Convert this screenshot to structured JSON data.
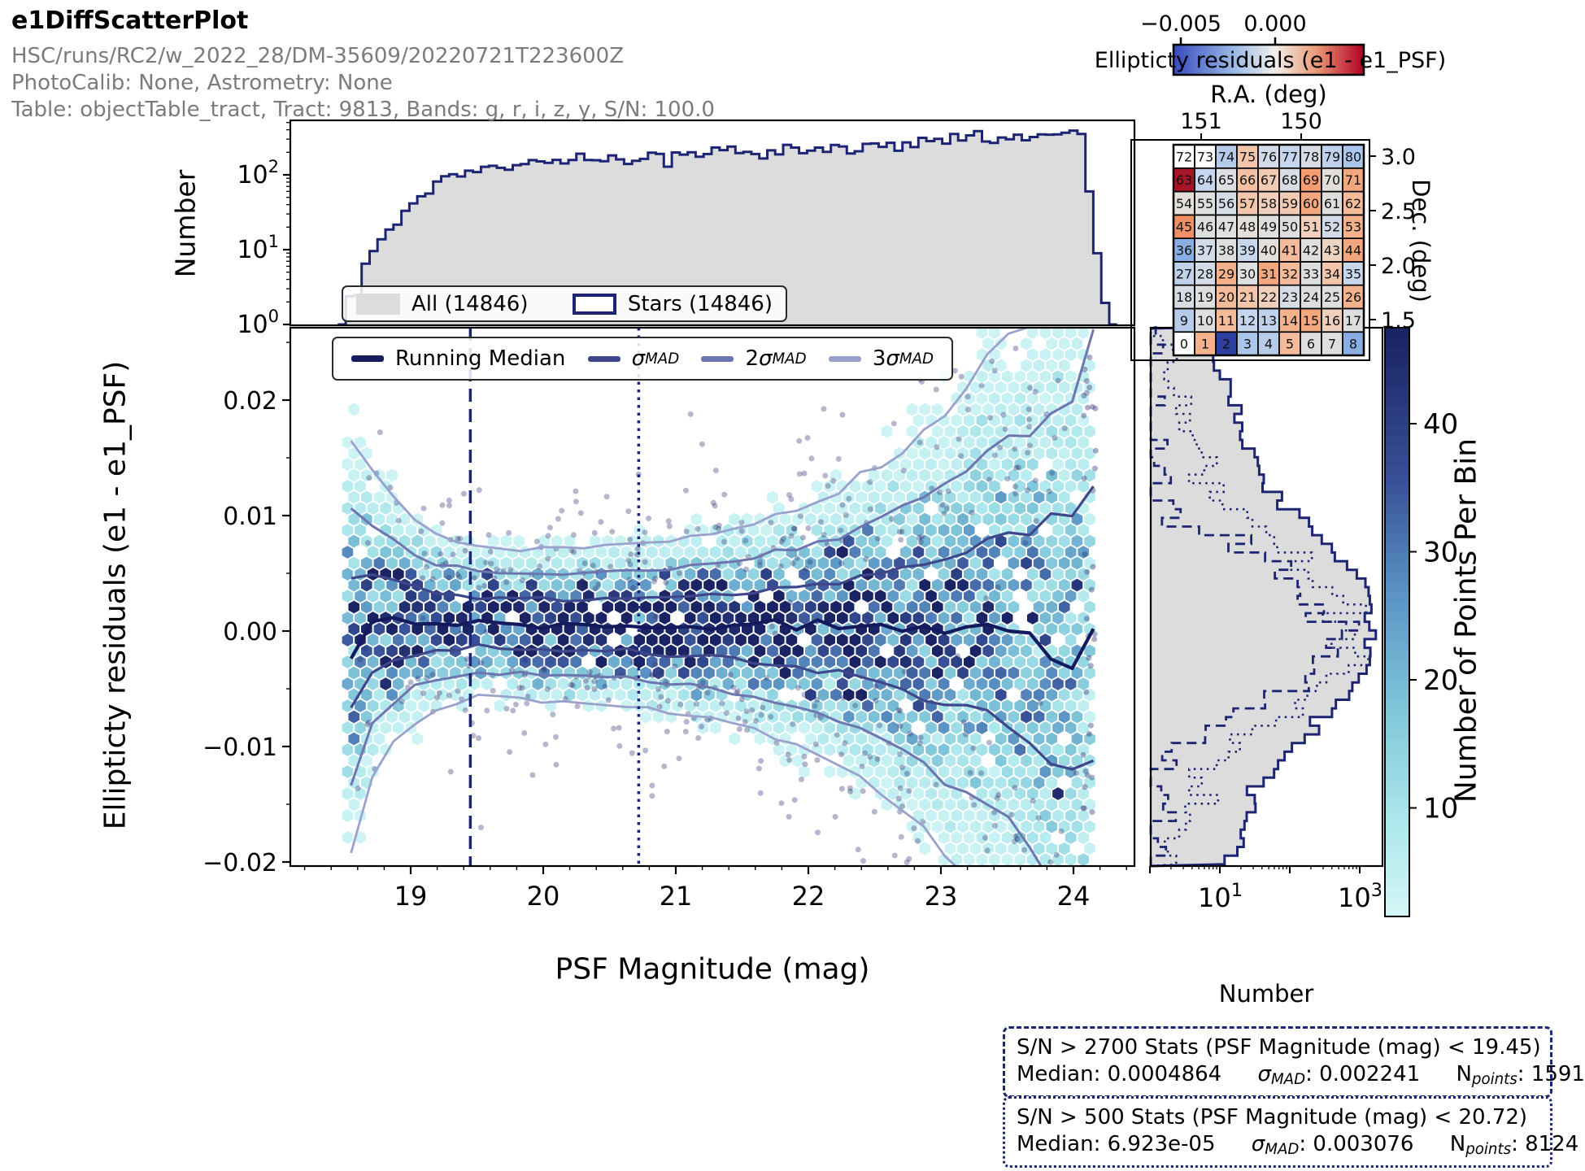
{
  "header": {
    "title": "e1DiffScatterPlot",
    "line1": "HSC/runs/RC2/w_2022_28/DM-35609/20220721T223600Z",
    "line2": "PhotoCalib: None, Astrometry: None",
    "line3": "Table: objectTable_tract, Tract: 9813, Bands: g, r, i, z, y, S/N: 100.0"
  },
  "corner": {
    "cb_label": "Ellipticty residuals (e1 - e1_PSF)",
    "cb_ticks": [
      "−0.005",
      "0.000"
    ],
    "ra_label": "R.A. (deg)",
    "dec_label": "Dec. (deg)",
    "ra_ticks": [
      "151",
      "150"
    ],
    "dec_ticks": [
      "3.0",
      "2.5",
      "2.0",
      "1.5"
    ]
  },
  "minimap_cells": [
    "#ffffff",
    "#f3b28c",
    "#2c3e9e",
    "#aac6ea",
    "#b5cbe9",
    "#f4bb9b",
    "#dddedf",
    "#e0dedd",
    "#88aee2",
    "#b5cbe9",
    "#dddedf",
    "#f4bb9b",
    "#c6d6ee",
    "#c0d1ec",
    "#f3b28c",
    "#f2a77e",
    "#f0cfbc",
    "#dddedf",
    "#d8dce4",
    "#dedfdf",
    "#f4bb9b",
    "#f3c6ab",
    "#f0cfbc",
    "#d8dce4",
    "#dddedf",
    "#e0dedd",
    "#f3b28c",
    "#c0d1ec",
    "#d3dbe8",
    "#f3b28c",
    "#dedfdf",
    "#f2a77e",
    "#f4bb9b",
    "#dddedf",
    "#f3c6ab",
    "#c9d7ec",
    "#88aee2",
    "#d3dbe8",
    "#dddedf",
    "#c9d7ec",
    "#e2ded9",
    "#f4bb9b",
    "#e0dedd",
    "#ecd4c2",
    "#f2a77e",
    "#ef8f63",
    "#dddedf",
    "#dedfdf",
    "#e2ded9",
    "#dedfdd",
    "#dddedf",
    "#f0cfbc",
    "#d3dbe8",
    "#f3b28c",
    "#e2ded9",
    "#dedfdf",
    "#d6dce6",
    "#f3c6ab",
    "#f0cfbc",
    "#f1cab4",
    "#f2a77e",
    "#dfdedd",
    "#f4bb9b",
    "#a81528",
    "#c6d6ee",
    "#dddee2",
    "#f3c0a2",
    "#f1cab4",
    "#d8dce4",
    "#f39c72",
    "#e2ded9",
    "#f2a77e",
    "#ffffff",
    "#ffffff",
    "#b5cbe9",
    "#f3c6ab",
    "#d3dbe8",
    "#c6d6ee",
    "#d8dce4",
    "#c0d1ec",
    "#aac6ea"
  ],
  "top_hist": {
    "ylabel": "Number"
  },
  "legend_top": {
    "items": [
      {
        "label": "All (14846)",
        "type": "fill"
      },
      {
        "label": "Stars (14846)",
        "type": "outline"
      }
    ]
  },
  "legend_main": {
    "items": [
      {
        "label": "Running Median",
        "coef": "",
        "sym": "",
        "sub": "",
        "color": "#181d5e",
        "lw": 8
      },
      {
        "label": "",
        "coef": "",
        "sym": "σ",
        "sub": "MAD",
        "color": "#3f478a",
        "lw": 7
      },
      {
        "label": "",
        "coef": "2",
        "sym": "σ",
        "sub": "MAD",
        "color": "#6d76ae",
        "lw": 7
      },
      {
        "label": "",
        "coef": "3",
        "sym": "σ",
        "sub": "MAD",
        "color": "#9aa2cc",
        "lw": 7
      }
    ]
  },
  "main": {
    "ylabel": "Ellipticty residuals (e1 - e1_PSF)",
    "xlabel": "PSF Magnitude (mag)"
  },
  "right_hist": {
    "xlabel": "Number"
  },
  "colorbar": {
    "label": "Number of Points Per Bin"
  },
  "axes": {
    "main_x": [
      "19",
      "20",
      "21",
      "22",
      "23",
      "24"
    ],
    "main_y": [
      "0.02",
      "0.01",
      "0.00",
      "−0.01",
      "−0.02"
    ],
    "top_y": [
      {
        "b": "10",
        "e": "2"
      },
      {
        "b": "10",
        "e": "1"
      },
      {
        "b": "10",
        "e": "0"
      }
    ],
    "right_x": [
      {
        "b": "10",
        "e": "1"
      },
      {
        "b": "10",
        "e": "3"
      }
    ],
    "cbar_ticks": [
      "40",
      "30",
      "20",
      "10"
    ]
  },
  "stats": [
    {
      "title": "S/N > 2700 Stats (PSF Magnitude (mag) < 19.45)",
      "median": "Median: 0.0004864",
      "sigma_sym": "σ",
      "sigma_sub": "MAD",
      "sigma_val": ": 0.002241",
      "n_sym": "N",
      "n_sub": "points",
      "n_val": ": 1591"
    },
    {
      "title": "S/N > 500 Stats (PSF Magnitude (mag) < 20.72)",
      "median": "Median: 6.923e-05",
      "sigma_sym": "σ",
      "sigma_sub": "MAD",
      "sigma_val": ": 0.003076",
      "n_sym": "N",
      "n_sub": "points",
      "n_val": ": 8124"
    }
  ],
  "chart_data": {
    "main_panel": {
      "type": "scatter",
      "xlabel": "PSF Magnitude (mag)",
      "ylabel": "Ellipticty residuals (e1 - e1_PSF)",
      "xlim": [
        18.1,
        24.55
      ],
      "ylim": [
        -0.0204,
        0.0263
      ],
      "x": [
        18.55,
        18.75,
        19.0,
        19.25,
        19.45,
        19.7,
        20.0,
        20.3,
        20.6,
        20.72,
        21.0,
        21.3,
        21.6,
        21.9,
        22.2,
        22.5,
        22.8,
        23.1,
        23.4,
        23.7,
        23.95,
        24.15
      ],
      "running_median": [
        -0.0012,
        0.0012,
        0.0009,
        0.0007,
        0.0008,
        0.0007,
        0.0006,
        0.0005,
        0.0006,
        0.0005,
        0.0004,
        0.0005,
        0.0003,
        0.0004,
        0.0002,
        0.0003,
        0.0001,
        -0.0004,
        0.0009,
        -0.0008,
        -0.0022,
        0.0008
      ],
      "sigma_mad": [
        0.0058,
        0.004,
        0.003,
        0.0024,
        0.0022,
        0.00215,
        0.0022,
        0.00225,
        0.0023,
        0.00235,
        0.0025,
        0.0027,
        0.003,
        0.0034,
        0.0039,
        0.0046,
        0.0055,
        0.0066,
        0.0078,
        0.0092,
        0.0108,
        0.0125
      ],
      "envelopes": [
        "median",
        "±1σ_MAD",
        "±2σ_MAD",
        "±3σ_MAD"
      ],
      "vlines": [
        {
          "x": 19.45,
          "style": "dashed"
        },
        {
          "x": 20.72,
          "style": "dotted"
        }
      ],
      "hexbin_count_range": [
        1,
        46
      ]
    },
    "top_histogram": {
      "type": "bar",
      "ylog": true,
      "n_all": 14846,
      "n_stars": 14846,
      "bin_width": 0.06,
      "anchors_mag": [
        18.48,
        18.52,
        18.58,
        18.66,
        18.75,
        18.9,
        19.05,
        19.2,
        19.35,
        19.5,
        19.65,
        19.9,
        20.2,
        20.6,
        21.0,
        21.4,
        21.8,
        22.2,
        22.6,
        23.0,
        23.4,
        23.7,
        23.9,
        24.0,
        24.07,
        24.12,
        24.17,
        24.22,
        24.27
      ],
      "anchors_count": [
        0,
        3,
        1,
        6,
        11,
        22,
        45,
        80,
        105,
        115,
        125,
        140,
        155,
        170,
        185,
        200,
        215,
        235,
        255,
        280,
        305,
        330,
        360,
        420,
        300,
        60,
        10,
        3,
        0
      ]
    },
    "right_histogram": {
      "type": "bar",
      "xlog": true,
      "bin_width_resid": 0.00075,
      "series": [
        {
          "name": "All/Stars",
          "style": "solid-fill",
          "peak": 1350,
          "core_sigma": 0.0042,
          "tail_peak": 55,
          "tail_sigma": 0.011,
          "floor": 1.8
        },
        {
          "name": "S/N > 2700",
          "style": "dashed",
          "peak": 380,
          "core_sigma": 0.0028,
          "tail_peak": 2.5,
          "tail_sigma": 0.0095,
          "floor": 0.45
        },
        {
          "name": "S/N > 500",
          "style": "dotted",
          "peak": 700,
          "core_sigma": 0.0034,
          "tail_peak": 10,
          "tail_sigma": 0.0105,
          "floor": 0.8
        }
      ]
    },
    "corner_map": {
      "type": "heatmap",
      "grid": [
        9,
        9
      ],
      "value_label": "Ellipticty residuals (e1 - e1_PSF)",
      "value_ticks": [
        -0.005,
        0.0
      ],
      "ra_ticks": [
        151,
        150
      ],
      "dec_ticks": [
        3.0,
        2.5,
        2.0,
        1.5
      ]
    },
    "colorbar": {
      "label": "Number of Points Per Bin",
      "ticks": [
        10,
        20,
        30,
        40
      ]
    }
  }
}
